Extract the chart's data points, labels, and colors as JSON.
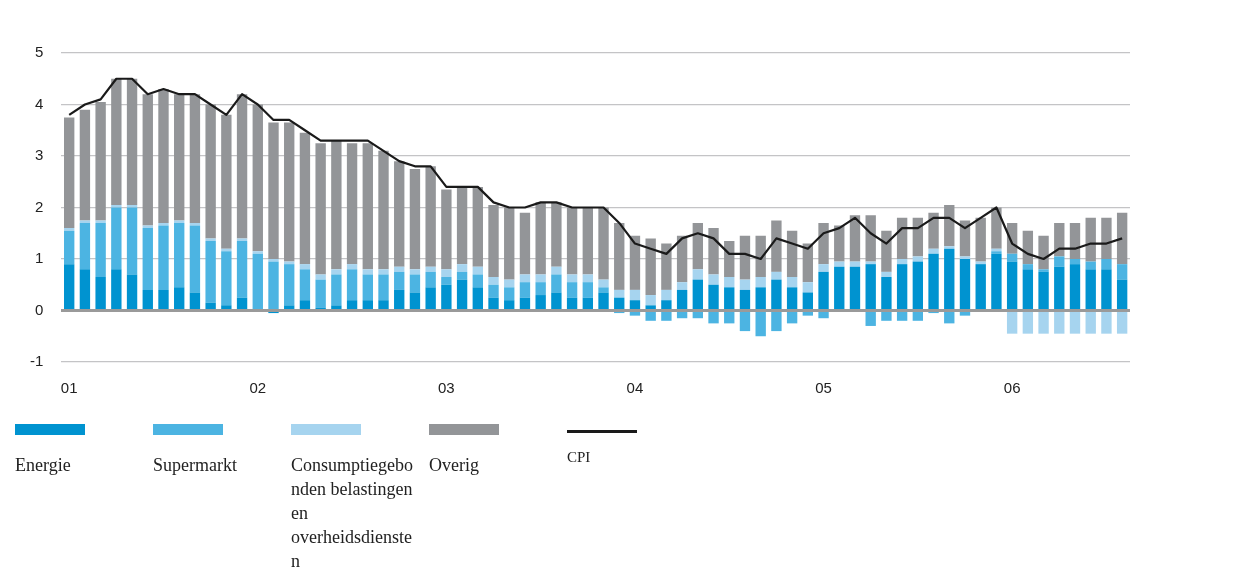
{
  "chart_data": {
    "type": "bar",
    "stacked": true,
    "categories": [
      "01",
      null,
      null,
      null,
      null,
      null,
      null,
      null,
      null,
      null,
      null,
      null,
      "02",
      null,
      null,
      null,
      null,
      null,
      null,
      null,
      null,
      null,
      null,
      null,
      "03",
      null,
      null,
      null,
      null,
      null,
      null,
      null,
      null,
      null,
      null,
      null,
      "04",
      null,
      null,
      null,
      null,
      null,
      null,
      null,
      null,
      null,
      null,
      null,
      "05",
      null,
      null,
      null,
      null,
      null,
      null,
      null,
      null,
      null,
      null,
      null,
      "06",
      null,
      null,
      null,
      null,
      null,
      null,
      null
    ],
    "series": [
      {
        "name": "Energie",
        "color": "#0093d0",
        "values": [
          0.9,
          0.8,
          0.65,
          0.8,
          0.7,
          0.4,
          0.4,
          0.45,
          0.35,
          0.15,
          0.1,
          0.25,
          0,
          -0.05,
          0.1,
          0.2,
          0.05,
          0.1,
          0.2,
          0.2,
          0.2,
          0.4,
          0.35,
          0.45,
          0.5,
          0.6,
          0.45,
          0.25,
          0.2,
          0.25,
          0.3,
          0.35,
          0.25,
          0.25,
          0.35,
          0.25,
          0.2,
          0.1,
          0.2,
          0.4,
          0.6,
          0.5,
          0.45,
          0.4,
          0.45,
          0.6,
          0.45,
          0.35,
          0.75,
          0.85,
          0.85,
          0.9,
          0.65,
          0.9,
          0.95,
          1.1,
          1.2,
          1.0,
          0.9,
          1.1,
          0.95,
          0.8,
          0.75,
          0.85,
          0.9,
          0.8,
          0.8,
          0.6
        ]
      },
      {
        "name": "Supermarkt",
        "color": "#4cb4e2",
        "values": [
          0.65,
          0.9,
          1.05,
          1.2,
          1.3,
          1.2,
          1.25,
          1.25,
          1.3,
          1.2,
          1.05,
          1.1,
          1.1,
          0.95,
          0.8,
          0.6,
          0.55,
          0.6,
          0.6,
          0.5,
          0.5,
          0.35,
          0.35,
          0.3,
          0.15,
          0.15,
          0.25,
          0.25,
          0.25,
          0.3,
          0.25,
          0.35,
          0.3,
          0.3,
          0.1,
          -0.05,
          -0.1,
          -0.2,
          -0.2,
          -0.15,
          -0.15,
          -0.25,
          -0.25,
          -0.4,
          -0.5,
          -0.4,
          -0.25,
          -0.1,
          -0.15,
          0,
          0,
          -0.3,
          -0.2,
          -0.2,
          -0.2,
          -0.05,
          -0.25,
          -0.1,
          0,
          0.05,
          0.15,
          0.1,
          0.05,
          0.2,
          0.1,
          0.15,
          0.2,
          0.3
        ]
      },
      {
        "name": "Consumptiegebonden belastingen en overheidsdiensten",
        "color": "#a6d4ef",
        "values": [
          0.05,
          0.05,
          0.05,
          0.05,
          0.05,
          0.05,
          0.05,
          0.05,
          0.05,
          0.05,
          0.05,
          0.05,
          0.05,
          0.05,
          0.05,
          0.1,
          0.1,
          0.1,
          0.1,
          0.1,
          0.1,
          0.1,
          0.1,
          0.1,
          0.15,
          0.15,
          0.15,
          0.15,
          0.15,
          0.15,
          0.15,
          0.15,
          0.15,
          0.15,
          0.15,
          0.15,
          0.2,
          0.2,
          0.2,
          0.15,
          0.2,
          0.2,
          0.2,
          0.2,
          0.2,
          0.15,
          0.2,
          0.2,
          0.15,
          0.1,
          0.1,
          0.05,
          0.1,
          0.1,
          0.1,
          0.1,
          0.05,
          0.05,
          0.05,
          0.05,
          -0.45,
          -0.45,
          -0.45,
          -0.45,
          -0.45,
          -0.45,
          -0.45,
          -0.45
        ]
      },
      {
        "name": "Overig",
        "color": "#939598",
        "values": [
          2.15,
          2.15,
          2.3,
          2.45,
          2.45,
          2.55,
          2.6,
          2.45,
          2.5,
          2.6,
          2.6,
          2.8,
          2.85,
          2.65,
          2.7,
          2.55,
          2.55,
          2.5,
          2.35,
          2.45,
          2.3,
          2.05,
          1.95,
          1.95,
          1.55,
          1.5,
          1.55,
          1.4,
          1.4,
          1.2,
          1.4,
          1.25,
          1.3,
          1.3,
          1.4,
          1.3,
          1.05,
          1.1,
          0.9,
          0.9,
          0.9,
          0.9,
          0.7,
          0.85,
          0.8,
          1.0,
          0.9,
          0.75,
          0.8,
          0.7,
          0.9,
          0.9,
          0.8,
          0.8,
          0.75,
          0.7,
          0.8,
          0.7,
          0.85,
          0.8,
          0.6,
          0.65,
          0.65,
          0.65,
          0.7,
          0.85,
          0.8,
          1.0
        ]
      },
      {
        "name": "CPI",
        "type": "line",
        "color": "#1a1a1a",
        "values": [
          3.8,
          4.0,
          4.1,
          4.5,
          4.5,
          4.2,
          4.3,
          4.2,
          4.2,
          4.0,
          3.8,
          4.2,
          4.0,
          3.7,
          3.7,
          3.5,
          3.3,
          3.3,
          3.3,
          3.3,
          3.1,
          2.9,
          2.8,
          2.8,
          2.4,
          2.4,
          2.4,
          2.1,
          2.0,
          2.0,
          2.1,
          2.1,
          2.0,
          2.0,
          2.0,
          1.7,
          1.3,
          1.2,
          1.1,
          1.4,
          1.5,
          1.4,
          1.1,
          1.1,
          1.0,
          1.4,
          1.3,
          1.2,
          1.5,
          1.6,
          1.8,
          1.5,
          1.3,
          1.6,
          1.6,
          1.8,
          1.8,
          1.6,
          1.8,
          2.0,
          1.3,
          1.1,
          1.0,
          1.2,
          1.2,
          1.3,
          1.3,
          1.4
        ]
      }
    ],
    "ylim": [
      -1,
      5
    ],
    "yticks": [
      -1,
      0,
      1,
      2,
      3,
      4,
      5
    ],
    "grid": "y",
    "legend": "bottom",
    "marker": "none"
  }
}
